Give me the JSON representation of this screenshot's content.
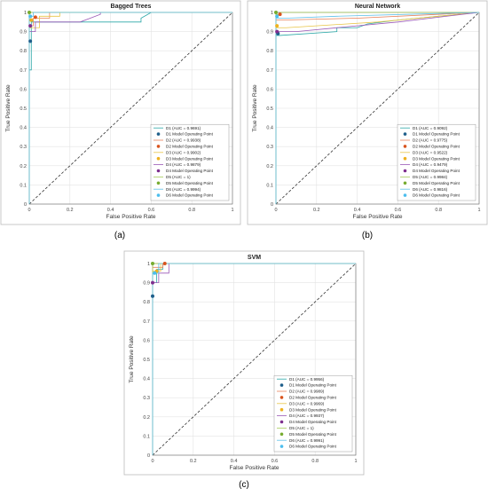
{
  "chart_data": [
    {
      "type": "line",
      "panel_label": "(a)",
      "title": "Bagged Trees",
      "xlabel": "False Positive Rate",
      "ylabel": "True Positive Rate",
      "xlim": [
        0,
        1
      ],
      "ylim": [
        0,
        1
      ],
      "xticks": [
        "0",
        "0.2",
        "0.4",
        "0.6",
        "0.8",
        "1"
      ],
      "yticks": [
        "0",
        "0.1",
        "0.2",
        "0.3",
        "0.4",
        "0.5",
        "0.6",
        "0.7",
        "0.8",
        "0.9",
        "1"
      ],
      "grid": true,
      "legend_position": "bottom-right",
      "series": [
        {
          "name": "D1 (AUC = 0.9691)",
          "color": "#2aa7a7",
          "x": [
            0,
            0,
            0.01,
            0.01,
            0.55,
            0.55,
            0.6,
            1
          ],
          "y": [
            0,
            0.7,
            0.7,
            0.95,
            0.95,
            0.97,
            1,
            1
          ],
          "op_label": "D1 Model Operating Point",
          "op_color": "#1f5f8b",
          "op": [
            0.005,
            0.85
          ]
        },
        {
          "name": "D2 (AUC = 0.9938)",
          "color": "#e8825a",
          "x": [
            0,
            0,
            0.02,
            0.02,
            0.1,
            0.1,
            1
          ],
          "y": [
            0,
            0.93,
            0.93,
            0.97,
            0.97,
            1,
            1
          ],
          "op_label": "D2 Model Operating Point",
          "op_color": "#d9541e",
          "op": [
            0.03,
            0.975
          ]
        },
        {
          "name": "D3 (AUC = 0.9902)",
          "color": "#e8c547",
          "x": [
            0,
            0,
            0.05,
            0.05,
            0.15,
            0.15,
            1
          ],
          "y": [
            0,
            0.92,
            0.92,
            0.98,
            0.98,
            1,
            1
          ],
          "op_label": "D3 Model Operating Point",
          "op_color": "#eeb21f",
          "op": [
            0.01,
            0.96
          ]
        },
        {
          "name": "D4 (AUC = 0.9879)",
          "color": "#9b59b6",
          "x": [
            0,
            0,
            0.03,
            0.03,
            0.25,
            0.3,
            0.35,
            0.35,
            1
          ],
          "y": [
            0,
            0.9,
            0.9,
            0.95,
            0.95,
            0.97,
            0.99,
            1,
            1
          ],
          "op_label": "D4 Model Operating Point",
          "op_color": "#7e2f8e",
          "op": [
            0.005,
            0.93
          ]
        },
        {
          "name": "D5 (AUC = 1)",
          "color": "#a6cc5a",
          "x": [
            0,
            0,
            1
          ],
          "y": [
            0,
            1,
            1
          ],
          "op_label": "D5 Model Operating Point",
          "op_color": "#77ac30",
          "op": [
            0,
            1
          ]
        },
        {
          "name": "D6 (AUC = 0.9994)",
          "color": "#5fc0e8",
          "x": [
            0,
            0,
            0.02,
            0.02,
            1
          ],
          "y": [
            0,
            0.98,
            0.98,
            1,
            1
          ],
          "op_label": "D6 Model Operating Point",
          "op_color": "#4dbeee",
          "op": [
            0.005,
            0.98
          ]
        }
      ]
    },
    {
      "type": "line",
      "panel_label": "(b)",
      "title": "Neural Network",
      "xlabel": "False Positive Rate",
      "ylabel": "True Positive Rate",
      "xlim": [
        0,
        1
      ],
      "ylim": [
        0,
        1
      ],
      "xticks": [
        "0",
        "0.2",
        "0.4",
        "0.6",
        "0.8",
        "1"
      ],
      "yticks": [
        "0",
        "0.1",
        "0.2",
        "0.3",
        "0.4",
        "0.5",
        "0.6",
        "0.7",
        "0.8",
        "0.9",
        "1"
      ],
      "grid": true,
      "legend_position": "bottom-right",
      "series": [
        {
          "name": "D1 (AUC = 0.9092)",
          "color": "#2aa7a7",
          "x": [
            0,
            0,
            0.02,
            0.3,
            0.3,
            0.4,
            0.45,
            0.6,
            0.8,
            1
          ],
          "y": [
            0,
            0.88,
            0.88,
            0.9,
            0.92,
            0.92,
            0.94,
            0.96,
            0.98,
            1
          ],
          "op_label": "D1 Model Operating Point",
          "op_color": "#1f5f8b",
          "op": [
            0.01,
            0.89
          ]
        },
        {
          "name": "D2 (AUC = 0.9775)",
          "color": "#e8825a",
          "x": [
            0,
            0,
            0.03,
            0.4,
            1
          ],
          "y": [
            0,
            0.96,
            0.96,
            0.97,
            1
          ],
          "op_label": "D2 Model Operating Point",
          "op_color": "#d9541e",
          "op": [
            0.02,
            0.99
          ]
        },
        {
          "name": "D3 (AUC = 0.9522)",
          "color": "#e8c547",
          "x": [
            0,
            0,
            0.05,
            0.5,
            1
          ],
          "y": [
            0,
            0.92,
            0.92,
            0.95,
            1
          ],
          "op_label": "D3 Model Operating Point",
          "op_color": "#eeb21f",
          "op": [
            0.005,
            0.93
          ]
        },
        {
          "name": "D4 (AUC = 0.9479)",
          "color": "#9b59b6",
          "x": [
            0,
            0,
            0.1,
            0.6,
            1
          ],
          "y": [
            0,
            0.9,
            0.9,
            0.95,
            1
          ],
          "op_label": "D4 Model Operating Point",
          "op_color": "#7e2f8e",
          "op": [
            0.005,
            0.9
          ]
        },
        {
          "name": "D5 (AUC = 0.9984)",
          "color": "#a6cc5a",
          "x": [
            0,
            0,
            0.02,
            0.02,
            1
          ],
          "y": [
            0,
            0.99,
            0.99,
            1,
            1
          ],
          "op_label": "D5 Model Operating Point",
          "op_color": "#77ac30",
          "op": [
            0,
            1
          ]
        },
        {
          "name": "D6 (AUC = 0.9816)",
          "color": "#5fc0e8",
          "x": [
            0,
            0,
            0.05,
            0.3,
            1
          ],
          "y": [
            0,
            0.97,
            0.97,
            0.98,
            1
          ],
          "op_label": "D6 Model Operating Point",
          "op_color": "#4dbeee",
          "op": [
            0.005,
            0.98
          ]
        }
      ]
    },
    {
      "type": "line",
      "panel_label": "(c)",
      "title": "SVM",
      "xlabel": "False Positive Rate",
      "ylabel": "True Positive Rate",
      "xlim": [
        0,
        1
      ],
      "ylim": [
        0,
        1
      ],
      "xticks": [
        "0",
        "0.2",
        "0.4",
        "0.6",
        "0.8",
        "1"
      ],
      "yticks": [
        "0",
        "0.1",
        "0.2",
        "0.3",
        "0.4",
        "0.5",
        "0.6",
        "0.7",
        "0.8",
        "0.9",
        "1"
      ],
      "grid": true,
      "legend_position": "bottom-right",
      "series": [
        {
          "name": "D1 (AUC = 0.9956)",
          "color": "#2aa7a7",
          "x": [
            0,
            0,
            0.02,
            0.02,
            0.05,
            0.05,
            1
          ],
          "y": [
            0,
            0.9,
            0.9,
            0.97,
            0.97,
            1,
            1
          ],
          "op_label": "D1 Model Operating Point",
          "op_color": "#1f5f8b",
          "op": [
            0,
            0.83
          ]
        },
        {
          "name": "D2 (AUC = 0.9989)",
          "color": "#e8825a",
          "x": [
            0,
            0,
            0.05,
            0.05,
            1
          ],
          "y": [
            0,
            0.98,
            0.98,
            1,
            1
          ],
          "op_label": "D2 Model Operating Point",
          "op_color": "#d9541e",
          "op": [
            0.06,
            1
          ]
        },
        {
          "name": "D3 (AUC = 0.9969)",
          "color": "#e8c547",
          "x": [
            0,
            0,
            0.04,
            0.04,
            1
          ],
          "y": [
            0,
            0.96,
            0.96,
            1,
            1
          ],
          "op_label": "D3 Model Operating Point",
          "op_color": "#eeb21f",
          "op": [
            0.02,
            0.96
          ]
        },
        {
          "name": "D4 (AUC = 0.9937)",
          "color": "#9b59b6",
          "x": [
            0,
            0,
            0.03,
            0.03,
            0.08,
            0.08,
            1
          ],
          "y": [
            0,
            0.9,
            0.9,
            0.95,
            0.95,
            1,
            1
          ],
          "op_label": "D4 Model Operating Point",
          "op_color": "#7e2f8e",
          "op": [
            0,
            0.9
          ]
        },
        {
          "name": "D5 (AUC = 1)",
          "color": "#a6cc5a",
          "x": [
            0,
            0,
            1
          ],
          "y": [
            0,
            1,
            1
          ],
          "op_label": "D5 Model Operating Point",
          "op_color": "#77ac30",
          "op": [
            0,
            1
          ]
        },
        {
          "name": "D6 (AUC = 0.9991)",
          "color": "#5fc0e8",
          "x": [
            0,
            0,
            0.03,
            0.03,
            1
          ],
          "y": [
            0,
            0.95,
            0.95,
            1,
            1
          ],
          "op_label": "D6 Model Operating Point",
          "op_color": "#4dbeee",
          "op": [
            0.01,
            0.95
          ]
        }
      ]
    }
  ]
}
